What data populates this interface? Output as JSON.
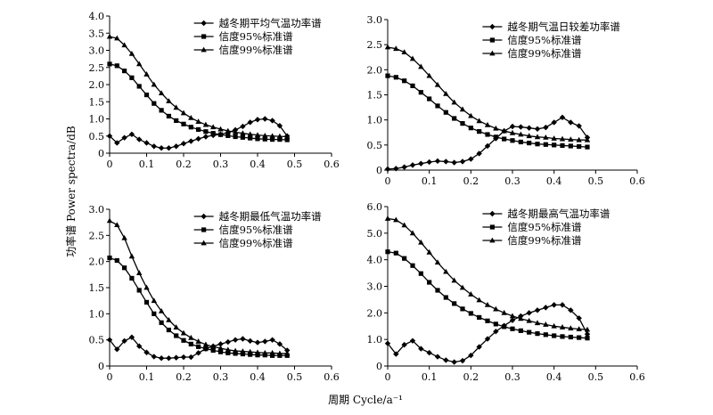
{
  "figure": {
    "ylabel": "功率谱 Power spectra/dB",
    "xlabel": "周期 Cycle/a⁻¹"
  },
  "chart_data": [
    {
      "type": "line",
      "xlim": [
        0,
        0.6
      ],
      "ylim": [
        0,
        4.0
      ],
      "xticks": [
        "0",
        "0.1",
        "0.2",
        "0.3",
        "0.4",
        "0.5",
        "0.6"
      ],
      "yticks": [
        "0",
        "0.5",
        "1.0",
        "1.5",
        "2.0",
        "2.5",
        "3.0",
        "3.5",
        "4.0"
      ],
      "legend_position": "top-right",
      "series": [
        {
          "name": "越冬期平均气温功率谱",
          "marker": "diamond",
          "x": [
            0,
            0.02,
            0.04,
            0.06,
            0.08,
            0.1,
            0.12,
            0.14,
            0.16,
            0.18,
            0.2,
            0.22,
            0.24,
            0.26,
            0.28,
            0.3,
            0.32,
            0.34,
            0.36,
            0.38,
            0.4,
            0.42,
            0.44,
            0.46,
            0.48
          ],
          "y": [
            0.5,
            0.3,
            0.45,
            0.55,
            0.4,
            0.3,
            0.2,
            0.15,
            0.15,
            0.2,
            0.28,
            0.35,
            0.42,
            0.48,
            0.52,
            0.55,
            0.6,
            0.68,
            0.78,
            0.9,
            0.98,
            1.0,
            0.95,
            0.8,
            0.5
          ]
        },
        {
          "name": "信度95%标准谱",
          "marker": "square",
          "x": [
            0,
            0.02,
            0.04,
            0.06,
            0.08,
            0.1,
            0.12,
            0.14,
            0.16,
            0.18,
            0.2,
            0.22,
            0.24,
            0.26,
            0.28,
            0.3,
            0.32,
            0.34,
            0.36,
            0.38,
            0.4,
            0.42,
            0.44,
            0.46,
            0.48
          ],
          "y": [
            2.6,
            2.55,
            2.4,
            2.2,
            1.95,
            1.7,
            1.45,
            1.25,
            1.08,
            0.95,
            0.85,
            0.76,
            0.69,
            0.63,
            0.58,
            0.54,
            0.51,
            0.48,
            0.46,
            0.44,
            0.42,
            0.41,
            0.4,
            0.4,
            0.39
          ]
        },
        {
          "name": "信度99%标准谱",
          "marker": "triangle",
          "x": [
            0,
            0.02,
            0.04,
            0.06,
            0.08,
            0.1,
            0.12,
            0.14,
            0.16,
            0.18,
            0.2,
            0.22,
            0.24,
            0.26,
            0.28,
            0.3,
            0.32,
            0.34,
            0.36,
            0.38,
            0.4,
            0.42,
            0.44,
            0.46,
            0.48
          ],
          "y": [
            3.4,
            3.35,
            3.15,
            2.9,
            2.6,
            2.3,
            2.0,
            1.75,
            1.52,
            1.33,
            1.17,
            1.03,
            0.92,
            0.83,
            0.76,
            0.7,
            0.65,
            0.61,
            0.58,
            0.55,
            0.53,
            0.51,
            0.5,
            0.49,
            0.48
          ]
        }
      ]
    },
    {
      "type": "line",
      "xlim": [
        0,
        0.6
      ],
      "ylim": [
        0,
        3.0
      ],
      "xticks": [
        "0",
        "0.1",
        "0.2",
        "0.3",
        "0.4",
        "0.5",
        "0.6"
      ],
      "yticks": [
        "0",
        "0.5",
        "1.0",
        "1.5",
        "2.0",
        "2.5",
        "3.0"
      ],
      "legend_position": "top-right",
      "series": [
        {
          "name": "越冬期气温日较差功率谱",
          "marker": "diamond",
          "x": [
            0,
            0.02,
            0.04,
            0.06,
            0.08,
            0.1,
            0.12,
            0.14,
            0.16,
            0.18,
            0.2,
            0.22,
            0.24,
            0.26,
            0.28,
            0.3,
            0.32,
            0.34,
            0.36,
            0.38,
            0.4,
            0.42,
            0.44,
            0.46,
            0.48
          ],
          "y": [
            0.02,
            0.03,
            0.06,
            0.1,
            0.13,
            0.16,
            0.18,
            0.17,
            0.15,
            0.17,
            0.22,
            0.33,
            0.48,
            0.63,
            0.78,
            0.87,
            0.86,
            0.84,
            0.82,
            0.85,
            0.95,
            1.05,
            0.95,
            0.88,
            0.65
          ]
        },
        {
          "name": "信度95%标准谱",
          "marker": "square",
          "x": [
            0,
            0.02,
            0.04,
            0.06,
            0.08,
            0.1,
            0.12,
            0.14,
            0.16,
            0.18,
            0.2,
            0.22,
            0.24,
            0.26,
            0.28,
            0.3,
            0.32,
            0.34,
            0.36,
            0.38,
            0.4,
            0.42,
            0.44,
            0.46,
            0.48
          ],
          "y": [
            1.88,
            1.85,
            1.78,
            1.68,
            1.55,
            1.42,
            1.28,
            1.15,
            1.03,
            0.93,
            0.84,
            0.77,
            0.71,
            0.66,
            0.62,
            0.59,
            0.56,
            0.54,
            0.52,
            0.51,
            0.5,
            0.49,
            0.48,
            0.47,
            0.46
          ]
        },
        {
          "name": "信度99%标准谱",
          "marker": "triangle",
          "x": [
            0,
            0.02,
            0.04,
            0.06,
            0.08,
            0.1,
            0.12,
            0.14,
            0.16,
            0.18,
            0.2,
            0.22,
            0.24,
            0.26,
            0.28,
            0.3,
            0.32,
            0.34,
            0.36,
            0.38,
            0.4,
            0.42,
            0.44,
            0.46,
            0.48
          ],
          "y": [
            2.45,
            2.42,
            2.35,
            2.22,
            2.06,
            1.88,
            1.7,
            1.52,
            1.35,
            1.21,
            1.08,
            0.98,
            0.9,
            0.83,
            0.78,
            0.74,
            0.71,
            0.68,
            0.66,
            0.65,
            0.63,
            0.62,
            0.61,
            0.6,
            0.6
          ]
        }
      ]
    },
    {
      "type": "line",
      "xlim": [
        0,
        0.6
      ],
      "ylim": [
        0,
        3.0
      ],
      "xticks": [
        "0",
        "0.1",
        "0.2",
        "0.3",
        "0.4",
        "0.5",
        "0.6"
      ],
      "yticks": [
        "0",
        "0.5",
        "1.0",
        "1.5",
        "2.0",
        "2.5",
        "3.0"
      ],
      "legend_position": "top-right",
      "series": [
        {
          "name": "越冬期最低气温功率谱",
          "marker": "diamond",
          "x": [
            0,
            0.02,
            0.04,
            0.06,
            0.08,
            0.1,
            0.12,
            0.14,
            0.16,
            0.18,
            0.2,
            0.22,
            0.24,
            0.26,
            0.28,
            0.3,
            0.32,
            0.34,
            0.36,
            0.38,
            0.4,
            0.42,
            0.44,
            0.46,
            0.48
          ],
          "y": [
            0.5,
            0.32,
            0.48,
            0.55,
            0.38,
            0.26,
            0.18,
            0.15,
            0.15,
            0.16,
            0.17,
            0.17,
            0.25,
            0.33,
            0.38,
            0.42,
            0.46,
            0.5,
            0.52,
            0.48,
            0.45,
            0.47,
            0.5,
            0.42,
            0.3
          ]
        },
        {
          "name": "信度95%标准谱",
          "marker": "square",
          "x": [
            0,
            0.02,
            0.04,
            0.06,
            0.08,
            0.1,
            0.12,
            0.14,
            0.16,
            0.18,
            0.2,
            0.22,
            0.24,
            0.26,
            0.28,
            0.3,
            0.32,
            0.34,
            0.36,
            0.38,
            0.4,
            0.42,
            0.44,
            0.46,
            0.48
          ],
          "y": [
            2.07,
            2.02,
            1.88,
            1.68,
            1.45,
            1.22,
            1.0,
            0.83,
            0.69,
            0.58,
            0.49,
            0.42,
            0.37,
            0.33,
            0.3,
            0.27,
            0.25,
            0.24,
            0.23,
            0.22,
            0.21,
            0.21,
            0.2,
            0.2,
            0.2
          ]
        },
        {
          "name": "信度99%标准谱",
          "marker": "triangle",
          "x": [
            0,
            0.02,
            0.04,
            0.06,
            0.08,
            0.1,
            0.12,
            0.14,
            0.16,
            0.18,
            0.2,
            0.22,
            0.24,
            0.26,
            0.28,
            0.3,
            0.32,
            0.34,
            0.36,
            0.38,
            0.4,
            0.42,
            0.44,
            0.46,
            0.48
          ],
          "y": [
            2.78,
            2.7,
            2.45,
            2.1,
            1.78,
            1.5,
            1.25,
            1.05,
            0.88,
            0.74,
            0.63,
            0.54,
            0.47,
            0.41,
            0.37,
            0.34,
            0.31,
            0.29,
            0.28,
            0.27,
            0.26,
            0.25,
            0.25,
            0.24,
            0.24
          ]
        }
      ]
    },
    {
      "type": "line",
      "xlim": [
        0,
        0.6
      ],
      "ylim": [
        0,
        6.0
      ],
      "xticks": [
        "0",
        "0.1",
        "0.2",
        "0.3",
        "0.4",
        "0.5",
        "0.6"
      ],
      "yticks": [
        "0",
        "1.0",
        "2.0",
        "3.0",
        "4.0",
        "5.0",
        "6.0"
      ],
      "legend_position": "top-right",
      "series": [
        {
          "name": "越冬期最高气温功率谱",
          "marker": "diamond",
          "x": [
            0,
            0.02,
            0.04,
            0.06,
            0.08,
            0.1,
            0.12,
            0.14,
            0.16,
            0.18,
            0.2,
            0.22,
            0.24,
            0.26,
            0.28,
            0.3,
            0.32,
            0.34,
            0.36,
            0.38,
            0.4,
            0.42,
            0.44,
            0.46,
            0.48
          ],
          "y": [
            0.85,
            0.45,
            0.8,
            0.95,
            0.65,
            0.5,
            0.35,
            0.22,
            0.15,
            0.2,
            0.4,
            0.72,
            1.02,
            1.3,
            1.52,
            1.72,
            1.88,
            2.0,
            2.1,
            2.2,
            2.3,
            2.3,
            2.1,
            1.8,
            1.2
          ]
        },
        {
          "name": "信度95%标准谱",
          "marker": "square",
          "x": [
            0,
            0.02,
            0.04,
            0.06,
            0.08,
            0.1,
            0.12,
            0.14,
            0.16,
            0.18,
            0.2,
            0.22,
            0.24,
            0.26,
            0.28,
            0.3,
            0.32,
            0.34,
            0.36,
            0.38,
            0.4,
            0.42,
            0.44,
            0.46,
            0.48
          ],
          "y": [
            4.3,
            4.25,
            4.05,
            3.78,
            3.48,
            3.15,
            2.85,
            2.58,
            2.35,
            2.15,
            1.98,
            1.83,
            1.7,
            1.58,
            1.48,
            1.4,
            1.33,
            1.27,
            1.22,
            1.18,
            1.14,
            1.11,
            1.09,
            1.07,
            1.05
          ]
        },
        {
          "name": "信度99%标准谱",
          "marker": "triangle",
          "x": [
            0,
            0.02,
            0.04,
            0.06,
            0.08,
            0.1,
            0.12,
            0.14,
            0.16,
            0.18,
            0.2,
            0.22,
            0.24,
            0.26,
            0.28,
            0.3,
            0.32,
            0.34,
            0.36,
            0.38,
            0.4,
            0.42,
            0.44,
            0.46,
            0.48
          ],
          "y": [
            5.55,
            5.5,
            5.3,
            5.0,
            4.65,
            4.28,
            3.9,
            3.55,
            3.22,
            2.95,
            2.7,
            2.48,
            2.3,
            2.14,
            2.0,
            1.88,
            1.78,
            1.7,
            1.62,
            1.56,
            1.5,
            1.46,
            1.42,
            1.39,
            1.37
          ]
        }
      ]
    }
  ]
}
